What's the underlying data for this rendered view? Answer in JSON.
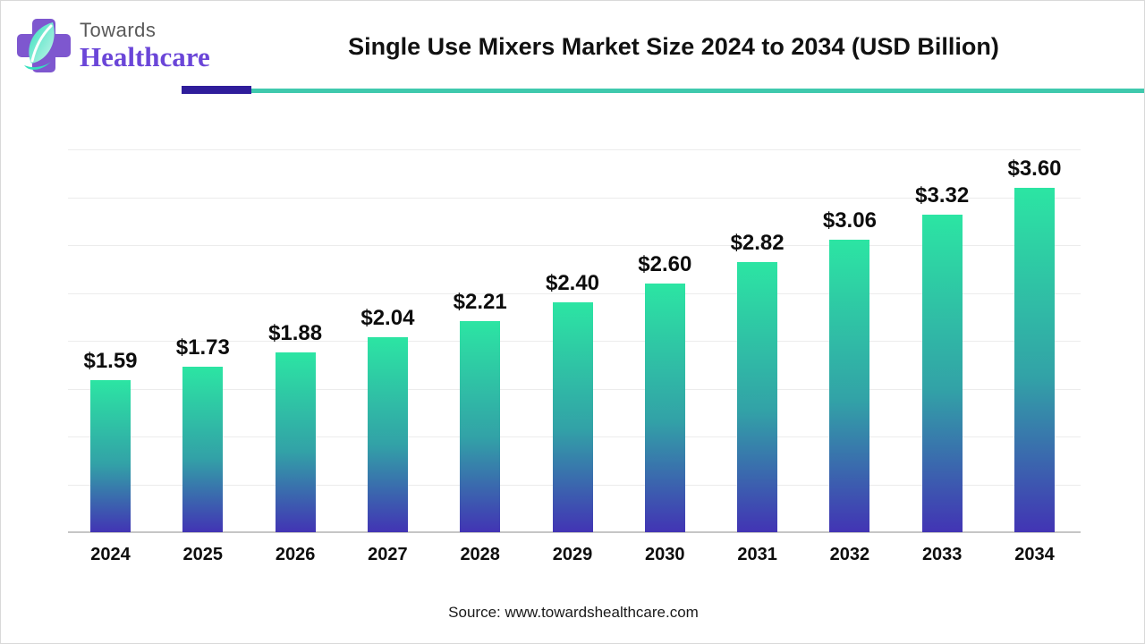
{
  "header": {
    "logo": {
      "line1": "Towards",
      "line2": "Healthcare"
    },
    "title": "Single Use Mixers Market Size 2024 to 2034 (USD Billion)",
    "rule_purple_color": "#2f1d9b",
    "rule_teal_color": "#3fc9ad"
  },
  "chart_data": {
    "type": "bar",
    "title": "Single Use Mixers Market Size 2024 to 2034 (USD Billion)",
    "unit": "USD Billion",
    "categories": [
      "2024",
      "2025",
      "2026",
      "2027",
      "2028",
      "2029",
      "2030",
      "2031",
      "2032",
      "2033",
      "2034"
    ],
    "values": [
      1.59,
      1.73,
      1.88,
      2.04,
      2.21,
      2.4,
      2.6,
      2.82,
      3.06,
      3.32,
      3.6
    ],
    "value_labels": [
      "$1.59",
      "$1.73",
      "$1.88",
      "$2.04",
      "$2.21",
      "$2.40",
      "$2.60",
      "$2.82",
      "$3.06",
      "$3.32",
      "$3.60"
    ],
    "ylim": [
      0,
      4.0
    ],
    "gridline_step": 0.5,
    "grid": true,
    "legend": "none",
    "y_axis_labels_visible": false,
    "colors": {
      "bar_gradient_top": "#2ce5a3",
      "bar_gradient_mid": "#32a2a7",
      "bar_gradient_bottom": "#4234b4",
      "gridline": "#ececec",
      "axis_line": "#c6c6c6",
      "label_text": "#0d0d0d"
    }
  },
  "source": "Source: www.towardshealthcare.com",
  "logo_colors": {
    "cross": "#7e57cf",
    "leaf_dark": "#35e0bd",
    "leaf_light": "#c8f5ea",
    "towards_text": "#595959",
    "healthcare_text": "#6b46d8"
  }
}
